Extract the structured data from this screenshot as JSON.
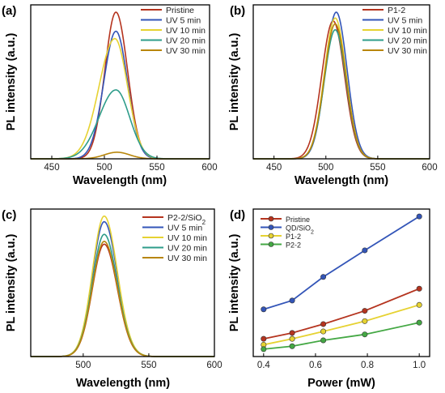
{
  "chart_data": [
    {
      "id": "a",
      "panel_label": "(a)",
      "type": "line",
      "xlabel": "Wavelength (nm)",
      "ylabel": "PL intensity (a.u.)",
      "xlim": [
        430,
        600
      ],
      "ylim": [
        0,
        1.05
      ],
      "xticks": [
        450,
        500,
        550,
        600
      ],
      "yticks_shown": false,
      "legend_position": "top-right",
      "series": [
        {
          "name": "Pristine",
          "color": "#b5341f",
          "peak": 511,
          "amplitude": 1.0,
          "sigma_left": 10.5,
          "sigma_right": 11
        },
        {
          "name": "UV 5 min",
          "color": "#3355b8",
          "peak": 511,
          "amplitude": 0.87,
          "sigma_left": 11.5,
          "sigma_right": 11
        },
        {
          "name": "UV 10 min",
          "color": "#e6d232",
          "peak": 510,
          "amplitude": 0.82,
          "sigma_left": 15,
          "sigma_right": 12
        },
        {
          "name": "UV 20 min",
          "color": "#2e9c8a",
          "peak": 511,
          "amplitude": 0.47,
          "sigma_left": 16,
          "sigma_right": 13
        },
        {
          "name": "UV 30 min",
          "color": "#b8860b",
          "peak": 512,
          "amplitude": 0.045,
          "sigma_left": 12,
          "sigma_right": 12
        }
      ]
    },
    {
      "id": "b",
      "panel_label": "(b)",
      "type": "line",
      "xlabel": "Wavelength (nm)",
      "ylabel": "PL intensity (a.u.)",
      "xlim": [
        430,
        600
      ],
      "ylim": [
        0,
        1.05
      ],
      "xticks": [
        450,
        500,
        550,
        600
      ],
      "yticks_shown": false,
      "legend_position": "top-right",
      "series": [
        {
          "name": "P1-2",
          "color": "#b5341f",
          "peak": 507,
          "amplitude": 0.94,
          "sigma_left": 11,
          "sigma_right": 11
        },
        {
          "name": "UV 5 min",
          "color": "#3355b8",
          "peak": 510,
          "amplitude": 1.0,
          "sigma_left": 10.5,
          "sigma_right": 10.5
        },
        {
          "name": "UV 10 min",
          "color": "#e6d232",
          "peak": 509,
          "amplitude": 0.96,
          "sigma_left": 10.5,
          "sigma_right": 10.5
        },
        {
          "name": "UV 20 min",
          "color": "#2e9c8a",
          "peak": 509,
          "amplitude": 0.88,
          "sigma_left": 10.5,
          "sigma_right": 10.5
        },
        {
          "name": "UV 30 min",
          "color": "#b8860b",
          "peak": 509,
          "amplitude": 0.92,
          "sigma_left": 10.5,
          "sigma_right": 10.5
        }
      ]
    },
    {
      "id": "c",
      "panel_label": "(c)",
      "type": "line",
      "xlabel": "Wavelength (nm)",
      "ylabel": "PL intensity (a.u.)",
      "xlim": [
        460,
        600
      ],
      "ylim": [
        0,
        1.05
      ],
      "xticks": [
        500,
        550,
        600
      ],
      "yticks_shown": false,
      "legend_position": "top-right",
      "series": [
        {
          "name": "P2-2/SiO",
          "name_subscript": "2",
          "color": "#b5341f",
          "peak": 516,
          "amplitude": 0.8,
          "sigma_left": 9,
          "sigma_right": 10
        },
        {
          "name": "UV 5 min",
          "color": "#3355b8",
          "peak": 516,
          "amplitude": 0.96,
          "sigma_left": 9,
          "sigma_right": 10
        },
        {
          "name": "UV 10 min",
          "color": "#e6d232",
          "peak": 516,
          "amplitude": 1.0,
          "sigma_left": 9,
          "sigma_right": 10
        },
        {
          "name": "UV 20 min",
          "color": "#2e9c8a",
          "peak": 516,
          "amplitude": 0.87,
          "sigma_left": 9,
          "sigma_right": 10
        },
        {
          "name": "UV 30 min",
          "color": "#b8860b",
          "peak": 516,
          "amplitude": 0.82,
          "sigma_left": 9,
          "sigma_right": 10
        }
      ]
    },
    {
      "id": "d",
      "panel_label": "(d)",
      "type": "line",
      "xlabel": "Power (mW)",
      "ylabel": "PL intensity (a.u.)",
      "xlim": [
        0.36,
        1.04
      ],
      "ylim": [
        0,
        1.0
      ],
      "xticks": [
        0.4,
        0.6,
        0.8,
        1.0
      ],
      "yticks_shown": false,
      "legend_position": "top-left",
      "x": [
        0.4,
        0.51,
        0.63,
        0.79,
        1.0
      ],
      "series": [
        {
          "name": "Pristine",
          "color": "#b5341f",
          "values": [
            0.12,
            0.16,
            0.22,
            0.31,
            0.46
          ]
        },
        {
          "name": "QD/SiO",
          "name_subscript": "2",
          "color": "#3355b8",
          "values": [
            0.32,
            0.38,
            0.54,
            0.72,
            0.95
          ]
        },
        {
          "name": "P1-2",
          "color": "#e6d232",
          "values": [
            0.08,
            0.12,
            0.17,
            0.24,
            0.35
          ]
        },
        {
          "name": "P2-2",
          "color": "#44a844",
          "values": [
            0.05,
            0.07,
            0.11,
            0.15,
            0.23
          ]
        }
      ]
    }
  ]
}
